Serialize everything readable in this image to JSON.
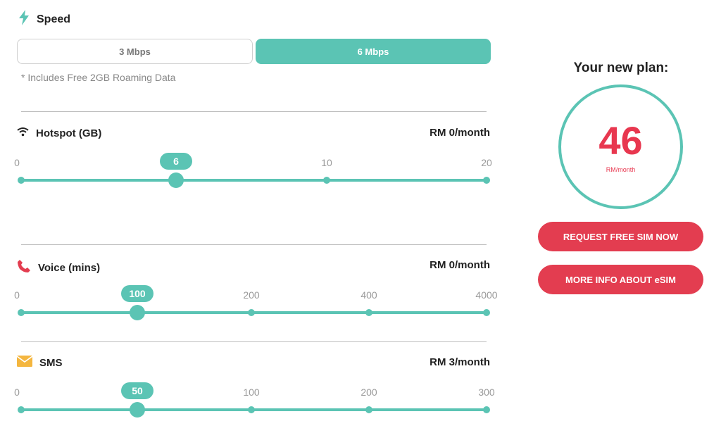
{
  "speed": {
    "title": "Speed",
    "options": [
      "3 Mbps",
      "6 Mbps"
    ],
    "selected": "6 Mbps",
    "note": "* Includes Free 2GB Roaming Data"
  },
  "hotspot": {
    "title": "Hotspot (GB)",
    "price": "RM 0/month",
    "ticks": [
      "0",
      "10",
      "20"
    ],
    "value": "6",
    "value_fraction": 0.333
  },
  "voice": {
    "title": "Voice (mins)",
    "price": "RM 0/month",
    "ticks": [
      "0",
      "200",
      "400",
      "4000"
    ],
    "value": "100",
    "value_fraction": 0.25
  },
  "sms": {
    "title": "SMS",
    "price": "RM 3/month",
    "ticks": [
      "0",
      "100",
      "200",
      "300"
    ],
    "value": "50",
    "value_fraction": 0.25
  },
  "plan": {
    "title": "Your new plan:",
    "amount": "46",
    "unit": "RM/month",
    "request_button": "REQUEST FREE SIM NOW",
    "esim_button": "MORE INFO ABOUT eSIM"
  },
  "colors": {
    "accent": "#5bc4b4",
    "brand_red": "#e33d50",
    "price_red": "#e8374f"
  },
  "icons": {
    "speed": "lightning-icon",
    "hotspot": "wifi-icon",
    "voice": "phone-icon",
    "sms": "envelope-icon"
  }
}
